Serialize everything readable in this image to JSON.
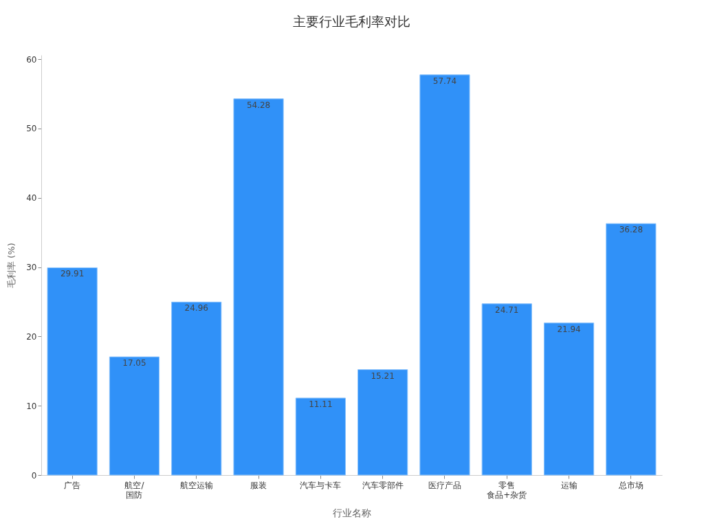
{
  "chart_data": {
    "type": "bar",
    "title": "主要行业毛利率对比",
    "xlabel": "行业名称",
    "ylabel": "毛利率 (%)",
    "categories": [
      "广告",
      "航空/国防",
      "航空运输",
      "服装",
      "汽车与卡车",
      "汽车零部件",
      "医疗产品",
      "零售食品+杂货",
      "运输",
      "总市场"
    ],
    "values": [
      29.91,
      17.05,
      24.96,
      54.28,
      11.11,
      15.21,
      57.74,
      24.71,
      21.94,
      36.28
    ],
    "color": "#3091f8",
    "ylim": [
      0,
      60.6
    ],
    "yticks": [
      0,
      10,
      20,
      30,
      40,
      50,
      60
    ],
    "grid": false,
    "data_labels": true
  }
}
